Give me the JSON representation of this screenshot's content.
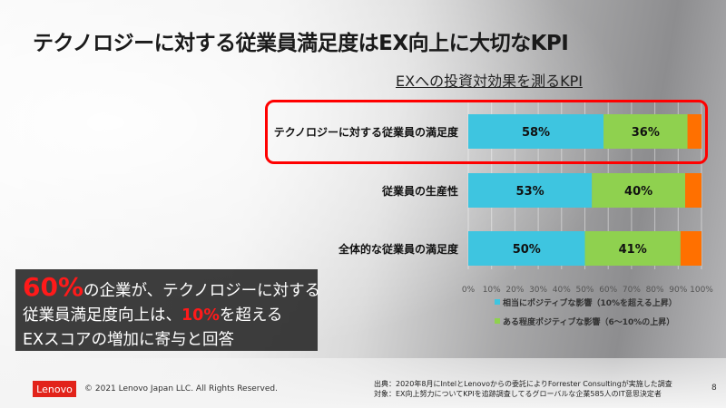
{
  "title": "テクノロジーに対する従業員満足度はEX向上に大切なKPI",
  "chart_data": {
    "type": "bar",
    "orientation": "horizontal",
    "stacked": true,
    "title": "EXへの投資対効果を測るKPI",
    "categories": [
      "テクノロジーに対する従業員の満足度",
      "従業員の生産性",
      "全体的な従業員の満足度"
    ],
    "series": [
      {
        "name": "相当にポジティブな影響（10%を超える上昇）",
        "color": "#3ec5e0",
        "values": [
          58,
          53,
          50
        ]
      },
      {
        "name": "ある程度ポジティブな影響（6〜10%の上昇）",
        "color": "#8fd14f",
        "values": [
          36,
          40,
          41
        ]
      },
      {
        "color": "#ff7000",
        "values": [
          6,
          7,
          9
        ]
      }
    ],
    "data_labels": [
      [
        "58%",
        "36%"
      ],
      [
        "53%",
        "40%"
      ],
      [
        "50%",
        "41%"
      ]
    ],
    "xlim": [
      0,
      100
    ],
    "xticks": [
      "0%",
      "10%",
      "20%",
      "30%",
      "40%",
      "50%",
      "60%",
      "70%",
      "80%",
      "90%",
      "100%"
    ],
    "grid": true,
    "legend": "bottom",
    "highlighted_category": "テクノロジーに対する従業員の満足度"
  },
  "callout": {
    "p1": "60%",
    "p2": "の企業が、テクノロジーに対する",
    "p3": "従業員満足度向上は、",
    "p4": "10%",
    "p5": "を超える",
    "p6": "EXスコアの増加に寄与と回答"
  },
  "footer": {
    "logo": "Lenovo",
    "copyright": "© 2021 Lenovo Japan LLC. All Rights Reserved.",
    "source1": "出典：2020年8月にIntelとLenovoからの委託によりForrester Consultingが実施した調査",
    "source2": "対象：EX向上努力についてKPIを追跡調査してるグローバルな企業585人のIT意思決定者",
    "page": "8"
  }
}
